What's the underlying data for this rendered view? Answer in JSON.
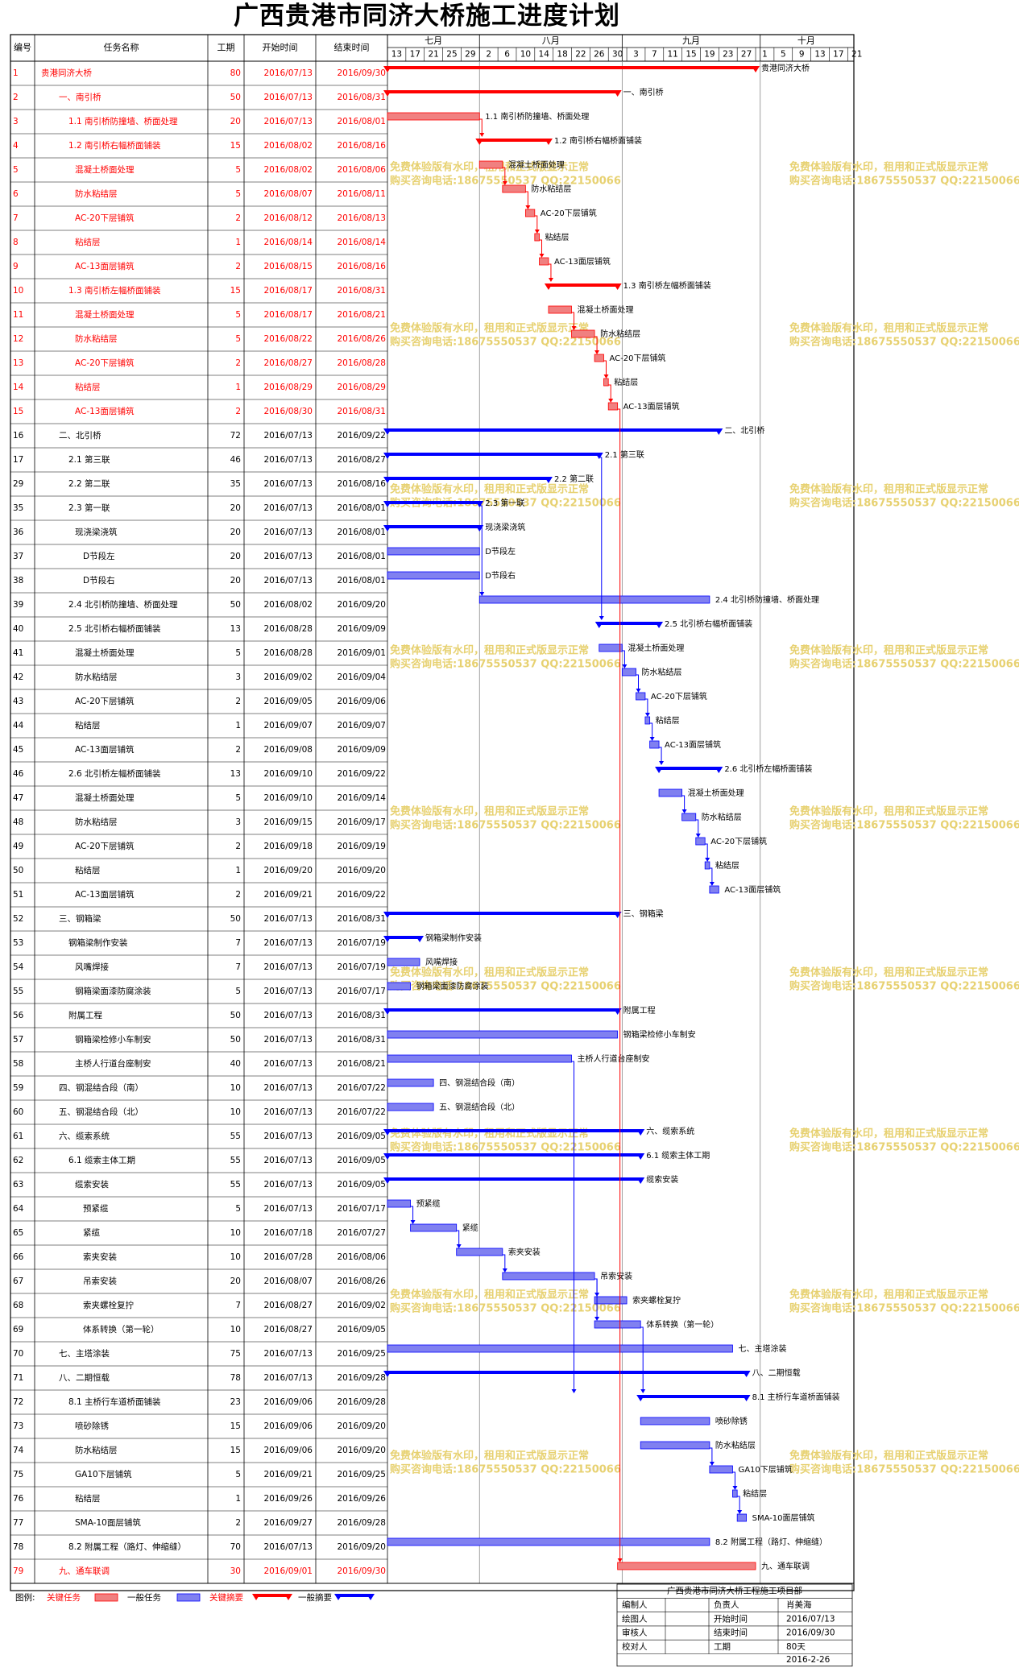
{
  "title": "广西贵港市同济大桥施工进度计划",
  "headers": {
    "id": "编号",
    "name": "任务名称",
    "dur": "工期",
    "start": "开始时间",
    "end": "结束时间"
  },
  "months": [
    {
      "label": "七月",
      "days": [
        "13",
        "17",
        "21",
        "25",
        "29"
      ]
    },
    {
      "label": "八月",
      "days": [
        "2",
        "6",
        "10",
        "14",
        "18",
        "22",
        "26"
      ]
    },
    {
      "label": "九月",
      "days": [
        "30",
        "3",
        "7",
        "11",
        "15",
        "19",
        "23",
        "27"
      ]
    },
    {
      "label": "十月",
      "days": [
        "1",
        "5",
        "9",
        "13",
        "17",
        "21"
      ]
    }
  ],
  "colors": {
    "critical": "#ff0000",
    "normal": "#0000ff",
    "critical_bar": "#f08080",
    "normal_bar": "#8080f0",
    "watermark": "#e6cf6a"
  },
  "watermark": {
    "line1": "免费体验版有水印，租用和正式版显示正常",
    "line2": "购买咨询电话:18675550537 QQ:22150066"
  },
  "chart_data": {
    "type": "gantt",
    "axis_range": [
      "2016/07/13",
      "2016/10/21"
    ],
    "tasks": [
      {
        "id": "1",
        "name": "贵港同济大桥",
        "dur": "80",
        "start": "2016/07/13",
        "end": "2016/09/30",
        "level": 0,
        "crit": true,
        "summary": true
      },
      {
        "id": "2",
        "name": "一、南引桥",
        "dur": "50",
        "start": "2016/07/13",
        "end": "2016/08/31",
        "level": 1,
        "crit": true,
        "summary": true
      },
      {
        "id": "3",
        "name": "1.1 南引桥防撞墙、桥面处理",
        "dur": "20",
        "start": "2016/07/13",
        "end": "2016/08/01",
        "level": 2,
        "crit": true,
        "summary": false
      },
      {
        "id": "4",
        "name": "1.2 南引桥右幅桥面铺装",
        "dur": "15",
        "start": "2016/08/02",
        "end": "2016/08/16",
        "level": 2,
        "crit": true,
        "summary": true
      },
      {
        "id": "5",
        "name": "混凝土桥面处理",
        "dur": "5",
        "start": "2016/08/02",
        "end": "2016/08/06",
        "level": 3,
        "crit": true,
        "summary": false
      },
      {
        "id": "6",
        "name": "防水粘结层",
        "dur": "5",
        "start": "2016/08/07",
        "end": "2016/08/11",
        "level": 3,
        "crit": true,
        "summary": false
      },
      {
        "id": "7",
        "name": "AC-20下层铺筑",
        "dur": "2",
        "start": "2016/08/12",
        "end": "2016/08/13",
        "level": 3,
        "crit": true,
        "summary": false
      },
      {
        "id": "8",
        "name": "粘结层",
        "dur": "1",
        "start": "2016/08/14",
        "end": "2016/08/14",
        "level": 3,
        "crit": true,
        "summary": false
      },
      {
        "id": "9",
        "name": "AC-13面层铺筑",
        "dur": "2",
        "start": "2016/08/15",
        "end": "2016/08/16",
        "level": 3,
        "crit": true,
        "summary": false
      },
      {
        "id": "10",
        "name": "1.3 南引桥左幅桥面铺装",
        "dur": "15",
        "start": "2016/08/17",
        "end": "2016/08/31",
        "level": 2,
        "crit": true,
        "summary": true
      },
      {
        "id": "11",
        "name": "混凝土桥面处理",
        "dur": "5",
        "start": "2016/08/17",
        "end": "2016/08/21",
        "level": 3,
        "crit": true,
        "summary": false
      },
      {
        "id": "12",
        "name": "防水粘结层",
        "dur": "5",
        "start": "2016/08/22",
        "end": "2016/08/26",
        "level": 3,
        "crit": true,
        "summary": false
      },
      {
        "id": "13",
        "name": "AC-20下层铺筑",
        "dur": "2",
        "start": "2016/08/27",
        "end": "2016/08/28",
        "level": 3,
        "crit": true,
        "summary": false
      },
      {
        "id": "14",
        "name": "粘结层",
        "dur": "1",
        "start": "2016/08/29",
        "end": "2016/08/29",
        "level": 3,
        "crit": true,
        "summary": false
      },
      {
        "id": "15",
        "name": "AC-13面层铺筑",
        "dur": "2",
        "start": "2016/08/30",
        "end": "2016/08/31",
        "level": 3,
        "crit": true,
        "summary": false
      },
      {
        "id": "16",
        "name": "二、北引桥",
        "dur": "72",
        "start": "2016/07/13",
        "end": "2016/09/22",
        "level": 1,
        "crit": false,
        "summary": true
      },
      {
        "id": "17",
        "name": "2.1 第三联",
        "dur": "46",
        "start": "2016/07/13",
        "end": "2016/08/27",
        "level": 2,
        "crit": false,
        "summary": true
      },
      {
        "id": "29",
        "name": "2.2 第二联",
        "dur": "35",
        "start": "2016/07/13",
        "end": "2016/08/16",
        "level": 2,
        "crit": false,
        "summary": true
      },
      {
        "id": "35",
        "name": "2.3 第一联",
        "dur": "20",
        "start": "2016/07/13",
        "end": "2016/08/01",
        "level": 2,
        "crit": false,
        "summary": true
      },
      {
        "id": "36",
        "name": "现浇梁浇筑",
        "dur": "20",
        "start": "2016/07/13",
        "end": "2016/08/01",
        "level": 3,
        "crit": false,
        "summary": true
      },
      {
        "id": "37",
        "name": "D节段左",
        "dur": "20",
        "start": "2016/07/13",
        "end": "2016/08/01",
        "level": 4,
        "crit": false,
        "summary": false
      },
      {
        "id": "38",
        "name": "D节段右",
        "dur": "20",
        "start": "2016/07/13",
        "end": "2016/08/01",
        "level": 4,
        "crit": false,
        "summary": false
      },
      {
        "id": "39",
        "name": "2.4 北引桥防撞墙、桥面处理",
        "dur": "50",
        "start": "2016/08/02",
        "end": "2016/09/20",
        "level": 2,
        "crit": false,
        "summary": false
      },
      {
        "id": "40",
        "name": "2.5 北引桥右幅桥面铺装",
        "dur": "13",
        "start": "2016/08/28",
        "end": "2016/09/09",
        "level": 2,
        "crit": false,
        "summary": true
      },
      {
        "id": "41",
        "name": "混凝土桥面处理",
        "dur": "5",
        "start": "2016/08/28",
        "end": "2016/09/01",
        "level": 3,
        "crit": false,
        "summary": false
      },
      {
        "id": "42",
        "name": "防水粘结层",
        "dur": "3",
        "start": "2016/09/02",
        "end": "2016/09/04",
        "level": 3,
        "crit": false,
        "summary": false
      },
      {
        "id": "43",
        "name": "AC-20下层铺筑",
        "dur": "2",
        "start": "2016/09/05",
        "end": "2016/09/06",
        "level": 3,
        "crit": false,
        "summary": false
      },
      {
        "id": "44",
        "name": "粘结层",
        "dur": "1",
        "start": "2016/09/07",
        "end": "2016/09/07",
        "level": 3,
        "crit": false,
        "summary": false
      },
      {
        "id": "45",
        "name": "AC-13面层铺筑",
        "dur": "2",
        "start": "2016/09/08",
        "end": "2016/09/09",
        "level": 3,
        "crit": false,
        "summary": false
      },
      {
        "id": "46",
        "name": "2.6 北引桥左幅桥面铺装",
        "dur": "13",
        "start": "2016/09/10",
        "end": "2016/09/22",
        "level": 2,
        "crit": false,
        "summary": true
      },
      {
        "id": "47",
        "name": "混凝土桥面处理",
        "dur": "5",
        "start": "2016/09/10",
        "end": "2016/09/14",
        "level": 3,
        "crit": false,
        "summary": false
      },
      {
        "id": "48",
        "name": "防水粘结层",
        "dur": "3",
        "start": "2016/09/15",
        "end": "2016/09/17",
        "level": 3,
        "crit": false,
        "summary": false
      },
      {
        "id": "49",
        "name": "AC-20下层铺筑",
        "dur": "2",
        "start": "2016/09/18",
        "end": "2016/09/19",
        "level": 3,
        "crit": false,
        "summary": false
      },
      {
        "id": "50",
        "name": "粘结层",
        "dur": "1",
        "start": "2016/09/20",
        "end": "2016/09/20",
        "level": 3,
        "crit": false,
        "summary": false
      },
      {
        "id": "51",
        "name": "AC-13面层铺筑",
        "dur": "2",
        "start": "2016/09/21",
        "end": "2016/09/22",
        "level": 3,
        "crit": false,
        "summary": false
      },
      {
        "id": "52",
        "name": "三、钢箱梁",
        "dur": "50",
        "start": "2016/07/13",
        "end": "2016/08/31",
        "level": 1,
        "crit": false,
        "summary": true
      },
      {
        "id": "53",
        "name": "钢箱梁制作安装",
        "dur": "7",
        "start": "2016/07/13",
        "end": "2016/07/19",
        "level": 2,
        "crit": false,
        "summary": true
      },
      {
        "id": "54",
        "name": "风嘴焊接",
        "dur": "7",
        "start": "2016/07/13",
        "end": "2016/07/19",
        "level": 3,
        "crit": false,
        "summary": false
      },
      {
        "id": "55",
        "name": "钢箱梁面漆防腐涂装",
        "dur": "5",
        "start": "2016/07/13",
        "end": "2016/07/17",
        "level": 3,
        "crit": false,
        "summary": false
      },
      {
        "id": "56",
        "name": "附属工程",
        "dur": "50",
        "start": "2016/07/13",
        "end": "2016/08/31",
        "level": 2,
        "crit": false,
        "summary": true
      },
      {
        "id": "57",
        "name": "钢箱梁检修小车制安",
        "dur": "50",
        "start": "2016/07/13",
        "end": "2016/08/31",
        "level": 3,
        "crit": false,
        "summary": false
      },
      {
        "id": "58",
        "name": "主桥人行道台座制安",
        "dur": "40",
        "start": "2016/07/13",
        "end": "2016/08/21",
        "level": 3,
        "crit": false,
        "summary": false
      },
      {
        "id": "59",
        "name": "四、钢混结合段（南）",
        "dur": "10",
        "start": "2016/07/13",
        "end": "2016/07/22",
        "level": 1,
        "crit": false,
        "summary": false
      },
      {
        "id": "60",
        "name": "五、钢混结合段（北）",
        "dur": "10",
        "start": "2016/07/13",
        "end": "2016/07/22",
        "level": 1,
        "crit": false,
        "summary": false
      },
      {
        "id": "61",
        "name": "六、缆索系统",
        "dur": "55",
        "start": "2016/07/13",
        "end": "2016/09/05",
        "level": 1,
        "crit": false,
        "summary": true
      },
      {
        "id": "62",
        "name": "6.1 缆索主体工期",
        "dur": "55",
        "start": "2016/07/13",
        "end": "2016/09/05",
        "level": 2,
        "crit": false,
        "summary": true
      },
      {
        "id": "63",
        "name": "缆索安装",
        "dur": "55",
        "start": "2016/07/13",
        "end": "2016/09/05",
        "level": 3,
        "crit": false,
        "summary": true
      },
      {
        "id": "64",
        "name": "预紧缆",
        "dur": "5",
        "start": "2016/07/13",
        "end": "2016/07/17",
        "level": 4,
        "crit": false,
        "summary": false
      },
      {
        "id": "65",
        "name": "紧缆",
        "dur": "10",
        "start": "2016/07/18",
        "end": "2016/07/27",
        "level": 4,
        "crit": false,
        "summary": false
      },
      {
        "id": "66",
        "name": "索夹安装",
        "dur": "10",
        "start": "2016/07/28",
        "end": "2016/08/06",
        "level": 4,
        "crit": false,
        "summary": false
      },
      {
        "id": "67",
        "name": "吊索安装",
        "dur": "20",
        "start": "2016/08/07",
        "end": "2016/08/26",
        "level": 4,
        "crit": false,
        "summary": false
      },
      {
        "id": "68",
        "name": "索夹螺栓复拧",
        "dur": "7",
        "start": "2016/08/27",
        "end": "2016/09/02",
        "level": 4,
        "crit": false,
        "summary": false
      },
      {
        "id": "69",
        "name": "体系转换（第一轮）",
        "dur": "10",
        "start": "2016/08/27",
        "end": "2016/09/05",
        "level": 4,
        "crit": false,
        "summary": false
      },
      {
        "id": "70",
        "name": "七、主塔涂装",
        "dur": "75",
        "start": "2016/07/13",
        "end": "2016/09/25",
        "level": 1,
        "crit": false,
        "summary": false
      },
      {
        "id": "71",
        "name": "八、二期恒载",
        "dur": "78",
        "start": "2016/07/13",
        "end": "2016/09/28",
        "level": 1,
        "crit": false,
        "summary": true
      },
      {
        "id": "72",
        "name": "8.1 主桥行车道桥面铺装",
        "dur": "23",
        "start": "2016/09/06",
        "end": "2016/09/28",
        "level": 2,
        "crit": false,
        "summary": true
      },
      {
        "id": "73",
        "name": "喷砂除锈",
        "dur": "15",
        "start": "2016/09/06",
        "end": "2016/09/20",
        "level": 3,
        "crit": false,
        "summary": false
      },
      {
        "id": "74",
        "name": "防水粘结层",
        "dur": "15",
        "start": "2016/09/06",
        "end": "2016/09/20",
        "level": 3,
        "crit": false,
        "summary": false
      },
      {
        "id": "75",
        "name": "GA10下层铺筑",
        "dur": "5",
        "start": "2016/09/21",
        "end": "2016/09/25",
        "level": 3,
        "crit": false,
        "summary": false
      },
      {
        "id": "76",
        "name": "粘结层",
        "dur": "1",
        "start": "2016/09/26",
        "end": "2016/09/26",
        "level": 3,
        "crit": false,
        "summary": false
      },
      {
        "id": "77",
        "name": "SMA-10面层铺筑",
        "dur": "2",
        "start": "2016/09/27",
        "end": "2016/09/28",
        "level": 3,
        "crit": false,
        "summary": false
      },
      {
        "id": "78",
        "name": "8.2 附属工程（路灯、伸缩缝）",
        "dur": "70",
        "start": "2016/07/13",
        "end": "2016/09/20",
        "level": 2,
        "crit": false,
        "summary": false
      },
      {
        "id": "79",
        "name": "九、通车联调",
        "dur": "30",
        "start": "2016/09/01",
        "end": "2016/09/30",
        "level": 1,
        "crit": true,
        "summary": false
      }
    ],
    "links": [
      [
        "3",
        "4"
      ],
      [
        "5",
        "6"
      ],
      [
        "6",
        "7"
      ],
      [
        "7",
        "8"
      ],
      [
        "8",
        "9"
      ],
      [
        "9",
        "10"
      ],
      [
        "11",
        "12"
      ],
      [
        "12",
        "13"
      ],
      [
        "13",
        "14"
      ],
      [
        "14",
        "15"
      ],
      [
        "15",
        "79"
      ],
      [
        "35",
        "39"
      ],
      [
        "17",
        "40"
      ],
      [
        "41",
        "42"
      ],
      [
        "42",
        "43"
      ],
      [
        "43",
        "44"
      ],
      [
        "44",
        "45"
      ],
      [
        "45",
        "46"
      ],
      [
        "47",
        "48"
      ],
      [
        "48",
        "49"
      ],
      [
        "49",
        "50"
      ],
      [
        "50",
        "51"
      ],
      [
        "64",
        "65"
      ],
      [
        "65",
        "66"
      ],
      [
        "66",
        "67"
      ],
      [
        "67",
        "68"
      ],
      [
        "67",
        "69"
      ],
      [
        "58",
        "72"
      ],
      [
        "69",
        "72"
      ],
      [
        "74",
        "75"
      ],
      [
        "75",
        "76"
      ],
      [
        "76",
        "77"
      ]
    ]
  },
  "legend": {
    "label": "图例:",
    "critical_task": "关键任务",
    "normal_task": "一般任务",
    "critical_summary": "关键摘要",
    "normal_summary": "一般摘要"
  },
  "footer": {
    "org": "广西贵港市同济大桥工程施工项目部",
    "rows": [
      [
        "编制人",
        "",
        "负责人",
        "肖美海"
      ],
      [
        "绘图人",
        "",
        "开始时间",
        "2016/07/13"
      ],
      [
        "审核人",
        "",
        "结束时间",
        "2016/09/30"
      ],
      [
        "校对人",
        "",
        "工期",
        "80天"
      ]
    ],
    "date": "2016-2-26"
  }
}
